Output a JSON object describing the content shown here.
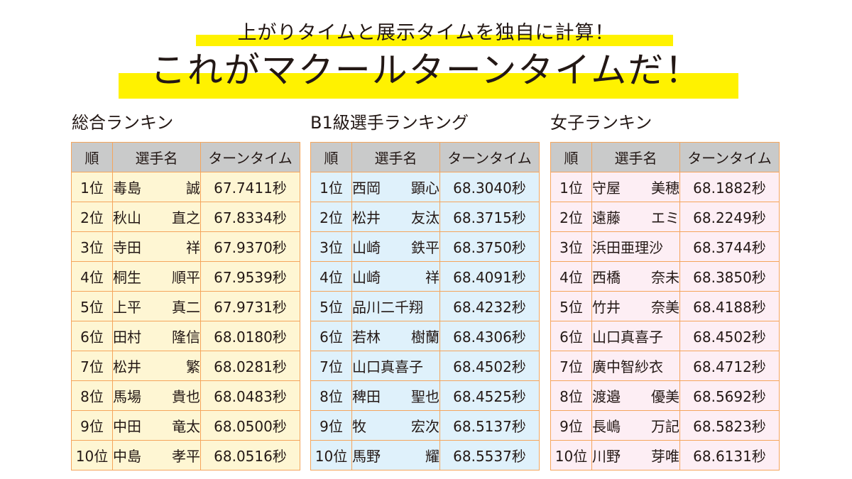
{
  "header": {
    "subtitle": "上がりタイムと展示タイムを独自に計算！",
    "title": "これがマクールターンタイムだ！"
  },
  "colors": {
    "highlight": "#fff200",
    "header_bg": "#c9caca",
    "border": "#f5a55c",
    "overall_row_bg": "#fef6d3",
    "b1_row_bg": "#dff1fb",
    "female_row_bg": "#fdeef4"
  },
  "columns": [
    "順",
    "選手名",
    "ターンタイム"
  ],
  "rankings": [
    {
      "title": "総合ランキン",
      "rows": [
        {
          "pos": "1位",
          "name": [
            "毒島",
            "誠"
          ],
          "time": "67.7411秒"
        },
        {
          "pos": "2位",
          "name": [
            "秋山",
            "直之"
          ],
          "time": "67.8334秒"
        },
        {
          "pos": "3位",
          "name": [
            "寺田",
            "祥"
          ],
          "time": "67.9370秒"
        },
        {
          "pos": "4位",
          "name": [
            "桐生",
            "順平"
          ],
          "time": "67.9539秒"
        },
        {
          "pos": "5位",
          "name": [
            "上平",
            "真二"
          ],
          "time": "67.9731秒"
        },
        {
          "pos": "6位",
          "name": [
            "田村",
            "隆信"
          ],
          "time": "68.0180秒"
        },
        {
          "pos": "7位",
          "name": [
            "松井",
            "繁"
          ],
          "time": "68.0281秒"
        },
        {
          "pos": "8位",
          "name": [
            "馬場",
            "貴也"
          ],
          "time": "68.0483秒"
        },
        {
          "pos": "9位",
          "name": [
            "中田",
            "竜太"
          ],
          "time": "68.0500秒"
        },
        {
          "pos": "10位",
          "name": [
            "中島",
            "孝平"
          ],
          "time": "68.0516秒"
        }
      ]
    },
    {
      "title": "B1級選手ランキング",
      "rows": [
        {
          "pos": "1位",
          "name": [
            "西岡",
            "顕心"
          ],
          "time": "68.3040秒"
        },
        {
          "pos": "2位",
          "name": [
            "松井",
            "友汰"
          ],
          "time": "68.3715秒"
        },
        {
          "pos": "3位",
          "name": [
            "山崎",
            "鉄平"
          ],
          "time": "68.3750秒"
        },
        {
          "pos": "4位",
          "name": [
            "山崎",
            "祥"
          ],
          "time": "68.4091秒"
        },
        {
          "pos": "5位",
          "name": [
            "品川二千翔",
            ""
          ],
          "time": "68.4232秒"
        },
        {
          "pos": "6位",
          "name": [
            "若林",
            "樹蘭"
          ],
          "time": "68.4306秒"
        },
        {
          "pos": "7位",
          "name": [
            "山口真喜子",
            ""
          ],
          "time": "68.4502秒"
        },
        {
          "pos": "8位",
          "name": [
            "稗田",
            "聖也"
          ],
          "time": "68.4525秒"
        },
        {
          "pos": "9位",
          "name": [
            "牧",
            "宏次"
          ],
          "time": "68.5137秒"
        },
        {
          "pos": "10位",
          "name": [
            "馬野",
            "耀"
          ],
          "time": "68.5537秒"
        }
      ]
    },
    {
      "title": "女子ランキン",
      "rows": [
        {
          "pos": "1位",
          "name": [
            "守屋",
            "美穂"
          ],
          "time": "68.1882秒"
        },
        {
          "pos": "2位",
          "name": [
            "遠藤",
            "エミ"
          ],
          "time": "68.2249秒"
        },
        {
          "pos": "3位",
          "name": [
            "浜田亜理沙",
            ""
          ],
          "time": "68.3744秒"
        },
        {
          "pos": "4位",
          "name": [
            "西橋",
            "奈未"
          ],
          "time": "68.3850秒"
        },
        {
          "pos": "5位",
          "name": [
            "竹井",
            "奈美"
          ],
          "time": "68.4188秒"
        },
        {
          "pos": "6位",
          "name": [
            "山口真喜子",
            ""
          ],
          "time": "68.4502秒"
        },
        {
          "pos": "7位",
          "name": [
            "廣中智紗衣",
            ""
          ],
          "time": "68.4712秒"
        },
        {
          "pos": "8位",
          "name": [
            "渡邉",
            "優美"
          ],
          "time": "68.5692秒"
        },
        {
          "pos": "9位",
          "name": [
            "長嶋",
            "万記"
          ],
          "time": "68.5823秒"
        },
        {
          "pos": "10位",
          "name": [
            "川野",
            "芽唯"
          ],
          "time": "68.6131秒"
        }
      ]
    }
  ]
}
